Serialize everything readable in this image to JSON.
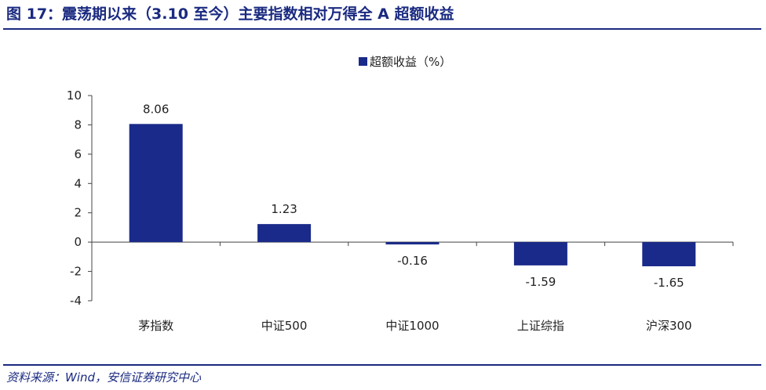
{
  "figure": {
    "title": "图 17：震荡期以来（3.10 至今）主要指数相对万得全 A 超额收益",
    "source": "资料来源：Wind，安信证券研究中心"
  },
  "colors": {
    "bar": "#1a2a8a",
    "title": "#1a2a80",
    "axis": "#444444"
  },
  "chart_data": {
    "type": "bar",
    "title": "",
    "xlabel": "",
    "ylabel": "",
    "categories": [
      "茅指数",
      "中证500",
      "中证1000",
      "上证综指",
      "沪深300"
    ],
    "series": [
      {
        "name": "超额收益（%）",
        "values": [
          8.06,
          1.23,
          -0.16,
          -1.59,
          -1.65
        ]
      }
    ],
    "value_labels": [
      "8.06",
      "1.23",
      "-0.16",
      "-1.59",
      "-1.65"
    ],
    "ylim": [
      -4,
      10
    ],
    "yticks": [
      10,
      8,
      6,
      4,
      2,
      0,
      -2,
      -4
    ],
    "grid": false,
    "legend_position": "top-center"
  }
}
